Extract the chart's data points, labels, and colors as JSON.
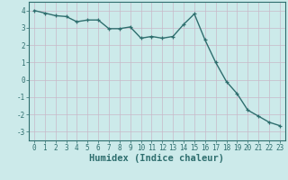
{
  "x": [
    0,
    1,
    2,
    3,
    4,
    5,
    6,
    7,
    8,
    9,
    10,
    11,
    12,
    13,
    14,
    15,
    16,
    17,
    18,
    19,
    20,
    21,
    22,
    23
  ],
  "y": [
    4.0,
    3.85,
    3.7,
    3.65,
    3.35,
    3.45,
    3.45,
    2.95,
    2.95,
    3.05,
    2.4,
    2.5,
    2.4,
    2.5,
    3.2,
    3.8,
    2.3,
    1.0,
    -0.1,
    -0.8,
    -1.75,
    -2.1,
    -2.45,
    -2.65
  ],
  "line_color": "#2e6e6e",
  "marker": "+",
  "marker_size": 3.5,
  "line_width": 1.0,
  "background_color": "#cceaea",
  "grid_color_v": "#c8b8c8",
  "grid_color_h": "#c8b8c8",
  "xlabel": "Humidex (Indice chaleur)",
  "xlim": [
    -0.5,
    23.5
  ],
  "ylim": [
    -3.5,
    4.5
  ],
  "yticks": [
    -3,
    -2,
    -1,
    0,
    1,
    2,
    3,
    4
  ],
  "xticks": [
    0,
    1,
    2,
    3,
    4,
    5,
    6,
    7,
    8,
    9,
    10,
    11,
    12,
    13,
    14,
    15,
    16,
    17,
    18,
    19,
    20,
    21,
    22,
    23
  ],
  "tick_fontsize": 5.5,
  "xlabel_fontsize": 7.5
}
